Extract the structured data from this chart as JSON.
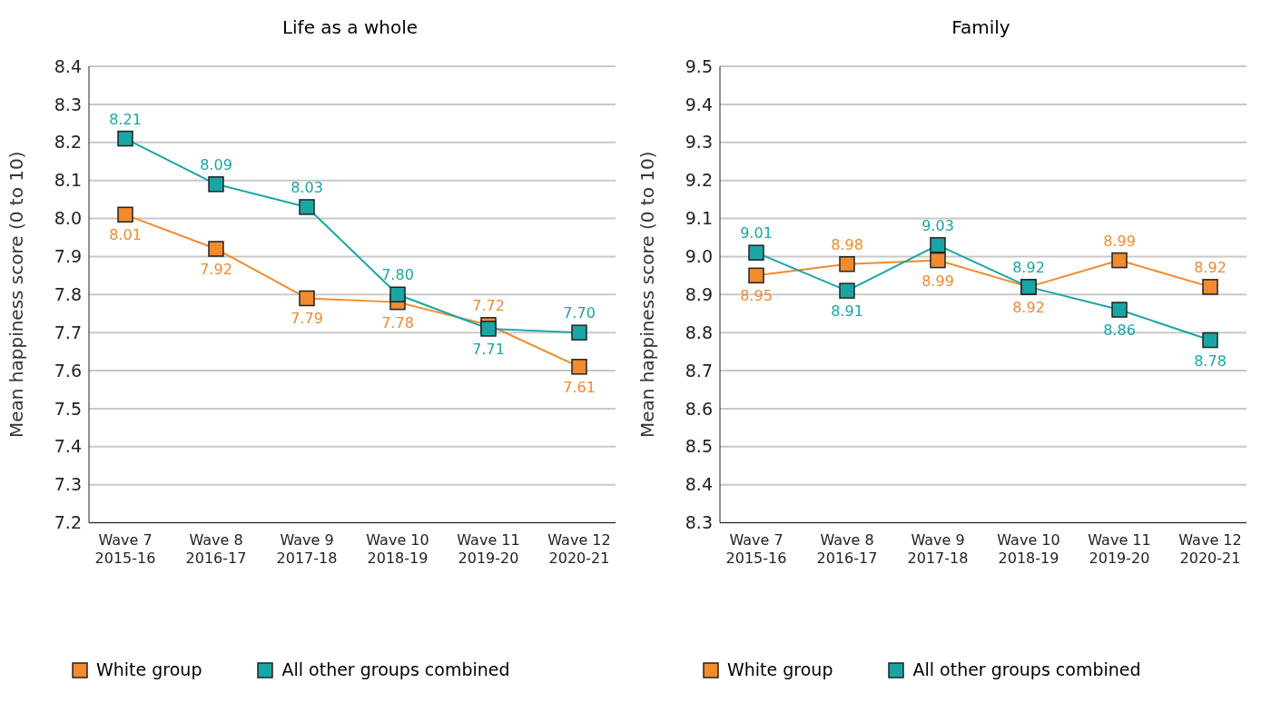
{
  "chart_data": [
    {
      "type": "line",
      "title": "Life as a whole",
      "ylabel": "Mean happiness score (0 to 10)",
      "categories": [
        "Wave 7\n2015-16",
        "Wave 8\n2016-17",
        "Wave 9\n2017-18",
        "Wave 10\n2018-19",
        "Wave 11\n2019-20",
        "Wave 12\n2020-21"
      ],
      "series": [
        {
          "name": "White group",
          "color": "#f28a2e",
          "values": [
            8.01,
            7.92,
            7.79,
            7.78,
            7.72,
            7.61
          ],
          "value_labels": [
            "8.01",
            "7.92",
            "7.79",
            "7.78",
            "7.72",
            "7.61"
          ]
        },
        {
          "name": "All other groups combined",
          "color": "#1aa5a5",
          "values": [
            8.21,
            8.09,
            8.03,
            7.8,
            7.71,
            7.7
          ],
          "value_labels": [
            "8.21",
            "8.09",
            "8.03",
            "7.80",
            "7.71",
            "7.70"
          ]
        }
      ],
      "ylim": [
        7.2,
        8.4
      ],
      "yticks": [
        7.2,
        7.3,
        7.4,
        7.5,
        7.6,
        7.7,
        7.8,
        7.9,
        {
          "value": 8,
          "label": "8.0"
        },
        8.1,
        8.2,
        8.3,
        8.4
      ],
      "grid": "y",
      "legend": "bottom",
      "marker": "square"
    },
    {
      "type": "line",
      "title": "Family",
      "ylabel": "Mean happiness score (0 to 10)",
      "categories": [
        "Wave 7\n2015-16",
        "Wave 8\n2016-17",
        "Wave 9\n2017-18",
        "Wave 10\n2018-19",
        "Wave 11\n2019-20",
        "Wave 12\n2020-21"
      ],
      "series": [
        {
          "name": "White group",
          "color": "#f28a2e",
          "values": [
            8.95,
            8.98,
            8.99,
            8.92,
            8.99,
            8.92
          ]
        },
        {
          "name": "All other groups combined",
          "color": "#1aa5a5",
          "values": [
            9.01,
            8.91,
            9.03,
            8.92,
            8.86,
            8.78
          ]
        }
      ],
      "ylim": [
        8.3,
        9.5
      ],
      "yticks": [
        8.3,
        8.4,
        8.5,
        8.6,
        8.7,
        8.8,
        8.9,
        {
          "value": 9,
          "label": "9.0"
        },
        9.1,
        9.2,
        9.3,
        9.4,
        9.5
      ],
      "grid": "y",
      "legend": "bottom",
      "marker": "square",
      "data_labels": true
    }
  ]
}
